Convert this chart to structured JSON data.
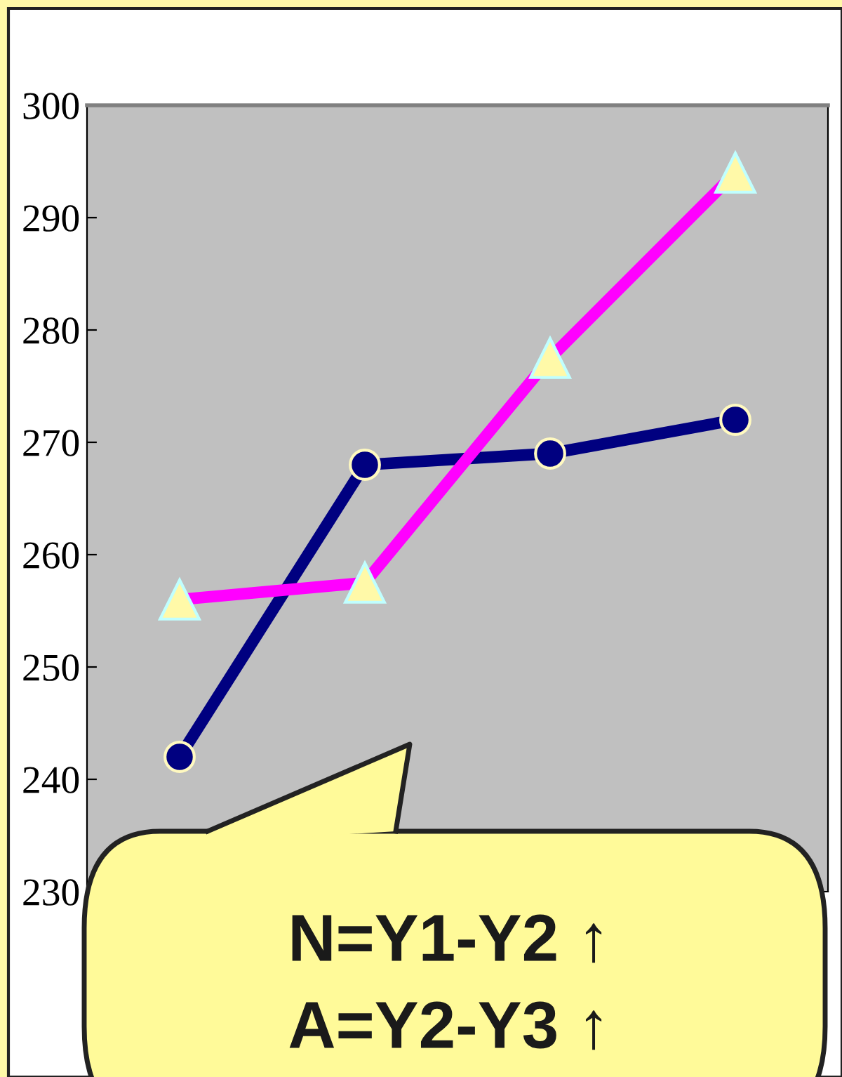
{
  "chart_data": {
    "type": "line",
    "categories": [
      null,
      null,
      null,
      null
    ],
    "series": [
      {
        "color": "#000080",
        "marker": "circle",
        "values": [
          242,
          268,
          269,
          272
        ]
      },
      {
        "color": "#ff00ff",
        "marker": "triangle",
        "values": [
          256,
          257.5,
          277.5,
          294
        ]
      }
    ],
    "ylim": [
      230,
      300
    ],
    "yticks": [
      230,
      240,
      250,
      260,
      270,
      280,
      290,
      300
    ],
    "tick_labels": "y",
    "grid": false,
    "line_style": "solid",
    "annotations": [
      "N=Y1-Y2 ↑",
      "A=Y2-Y3 ↑"
    ]
  }
}
